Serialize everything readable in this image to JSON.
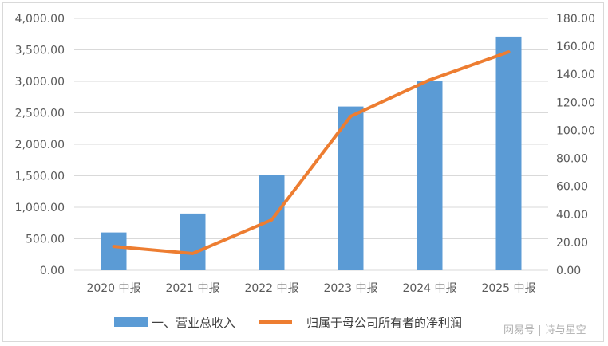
{
  "chart_data": {
    "type": "bar",
    "categories": [
      "2020 中报",
      "2021 中报",
      "2022 中报",
      "2023 中报",
      "2024 中报",
      "2025 中报"
    ],
    "series": [
      {
        "name": "一、营业总收入",
        "type": "bar",
        "axis": "left",
        "values": [
          600,
          900,
          1510,
          2600,
          3010,
          3710
        ]
      },
      {
        "name": "归属于母公司所有者的净利润",
        "type": "line",
        "axis": "right",
        "values": [
          17,
          12,
          36,
          110,
          136,
          156
        ]
      }
    ],
    "ylim_left": [
      0,
      4000
    ],
    "ylim_right": [
      0,
      180
    ],
    "y_ticks_left": [
      "0.00",
      "500.00",
      "1,000.00",
      "1,500.00",
      "2,000.00",
      "2,500.00",
      "3,000.00",
      "3,500.00",
      "4,000.00"
    ],
    "y_ticks_right": [
      "0.00",
      "20.00",
      "40.00",
      "60.00",
      "80.00",
      "100.00",
      "120.00",
      "140.00",
      "160.00",
      "180.00"
    ],
    "grid": true,
    "legend_position": "bottom",
    "colors": {
      "bar": "#5b9bd5",
      "line": "#ed7d31",
      "grid": "#d9d9d9"
    }
  },
  "watermark": "网易号 | 诗与星空"
}
